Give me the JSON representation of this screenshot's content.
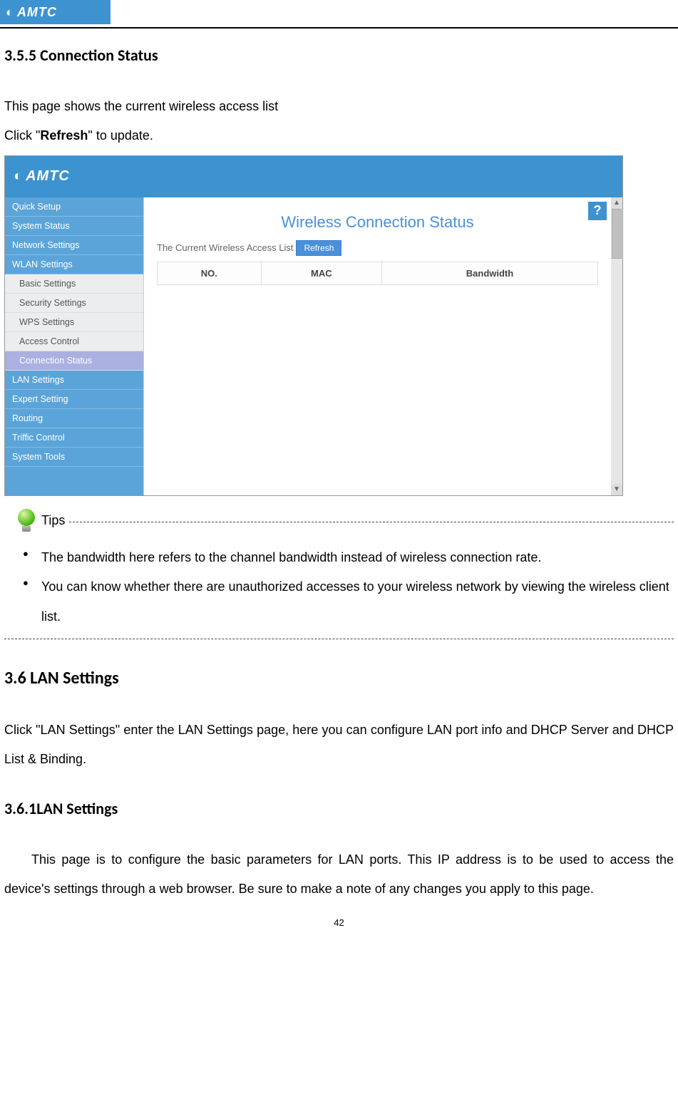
{
  "brand": "AMTC",
  "section_355_title": "3.5.5 Connection Status",
  "section_355_p1": "This page shows the current wireless access list",
  "section_355_p2_pre": "Click \"",
  "section_355_p2_bold": "Refresh",
  "section_355_p2_post": "\" to update.",
  "screenshot": {
    "sidebar": {
      "items": [
        {
          "label": "Quick Setup",
          "type": "top"
        },
        {
          "label": "System Status",
          "type": "top"
        },
        {
          "label": "Network Settings",
          "type": "top"
        },
        {
          "label": "WLAN Settings",
          "type": "top"
        },
        {
          "label": "Basic Settings",
          "type": "sub"
        },
        {
          "label": "Security Settings",
          "type": "sub"
        },
        {
          "label": "WPS Settings",
          "type": "sub"
        },
        {
          "label": "Access Control",
          "type": "sub"
        },
        {
          "label": "Connection Status",
          "type": "sub-active"
        },
        {
          "label": "LAN Settings",
          "type": "top"
        },
        {
          "label": "Expert Setting",
          "type": "top"
        },
        {
          "label": "Routing",
          "type": "top"
        },
        {
          "label": "Triffic Control",
          "type": "top"
        },
        {
          "label": "System Tools",
          "type": "top"
        }
      ]
    },
    "panel_title": "Wireless Connection Status",
    "access_label": "The Current Wireless Access List",
    "refresh_btn": "Refresh",
    "table_headers": [
      "NO.",
      "MAC",
      "Bandwidth"
    ],
    "help": "?"
  },
  "tips_label": "Tips",
  "tips": [
    "The bandwidth here refers to the channel bandwidth instead of wireless connection rate.",
    "You can know whether there are unauthorized accesses to your wireless network by viewing the wireless client list."
  ],
  "section_36_title": "3.6 LAN Settings",
  "section_36_body": "Click \"LAN Settings\" enter the LAN Settings page, here you can configure LAN port info and DHCP Server and DHCP List & Binding.",
  "section_361_title": "3.6.1LAN Settings",
  "section_361_body": "This page is to configure the basic parameters for LAN ports. This IP address is to be used to access the device's settings through a web browser. Be sure to make a note of any changes you apply to this page.",
  "page_number": "42"
}
